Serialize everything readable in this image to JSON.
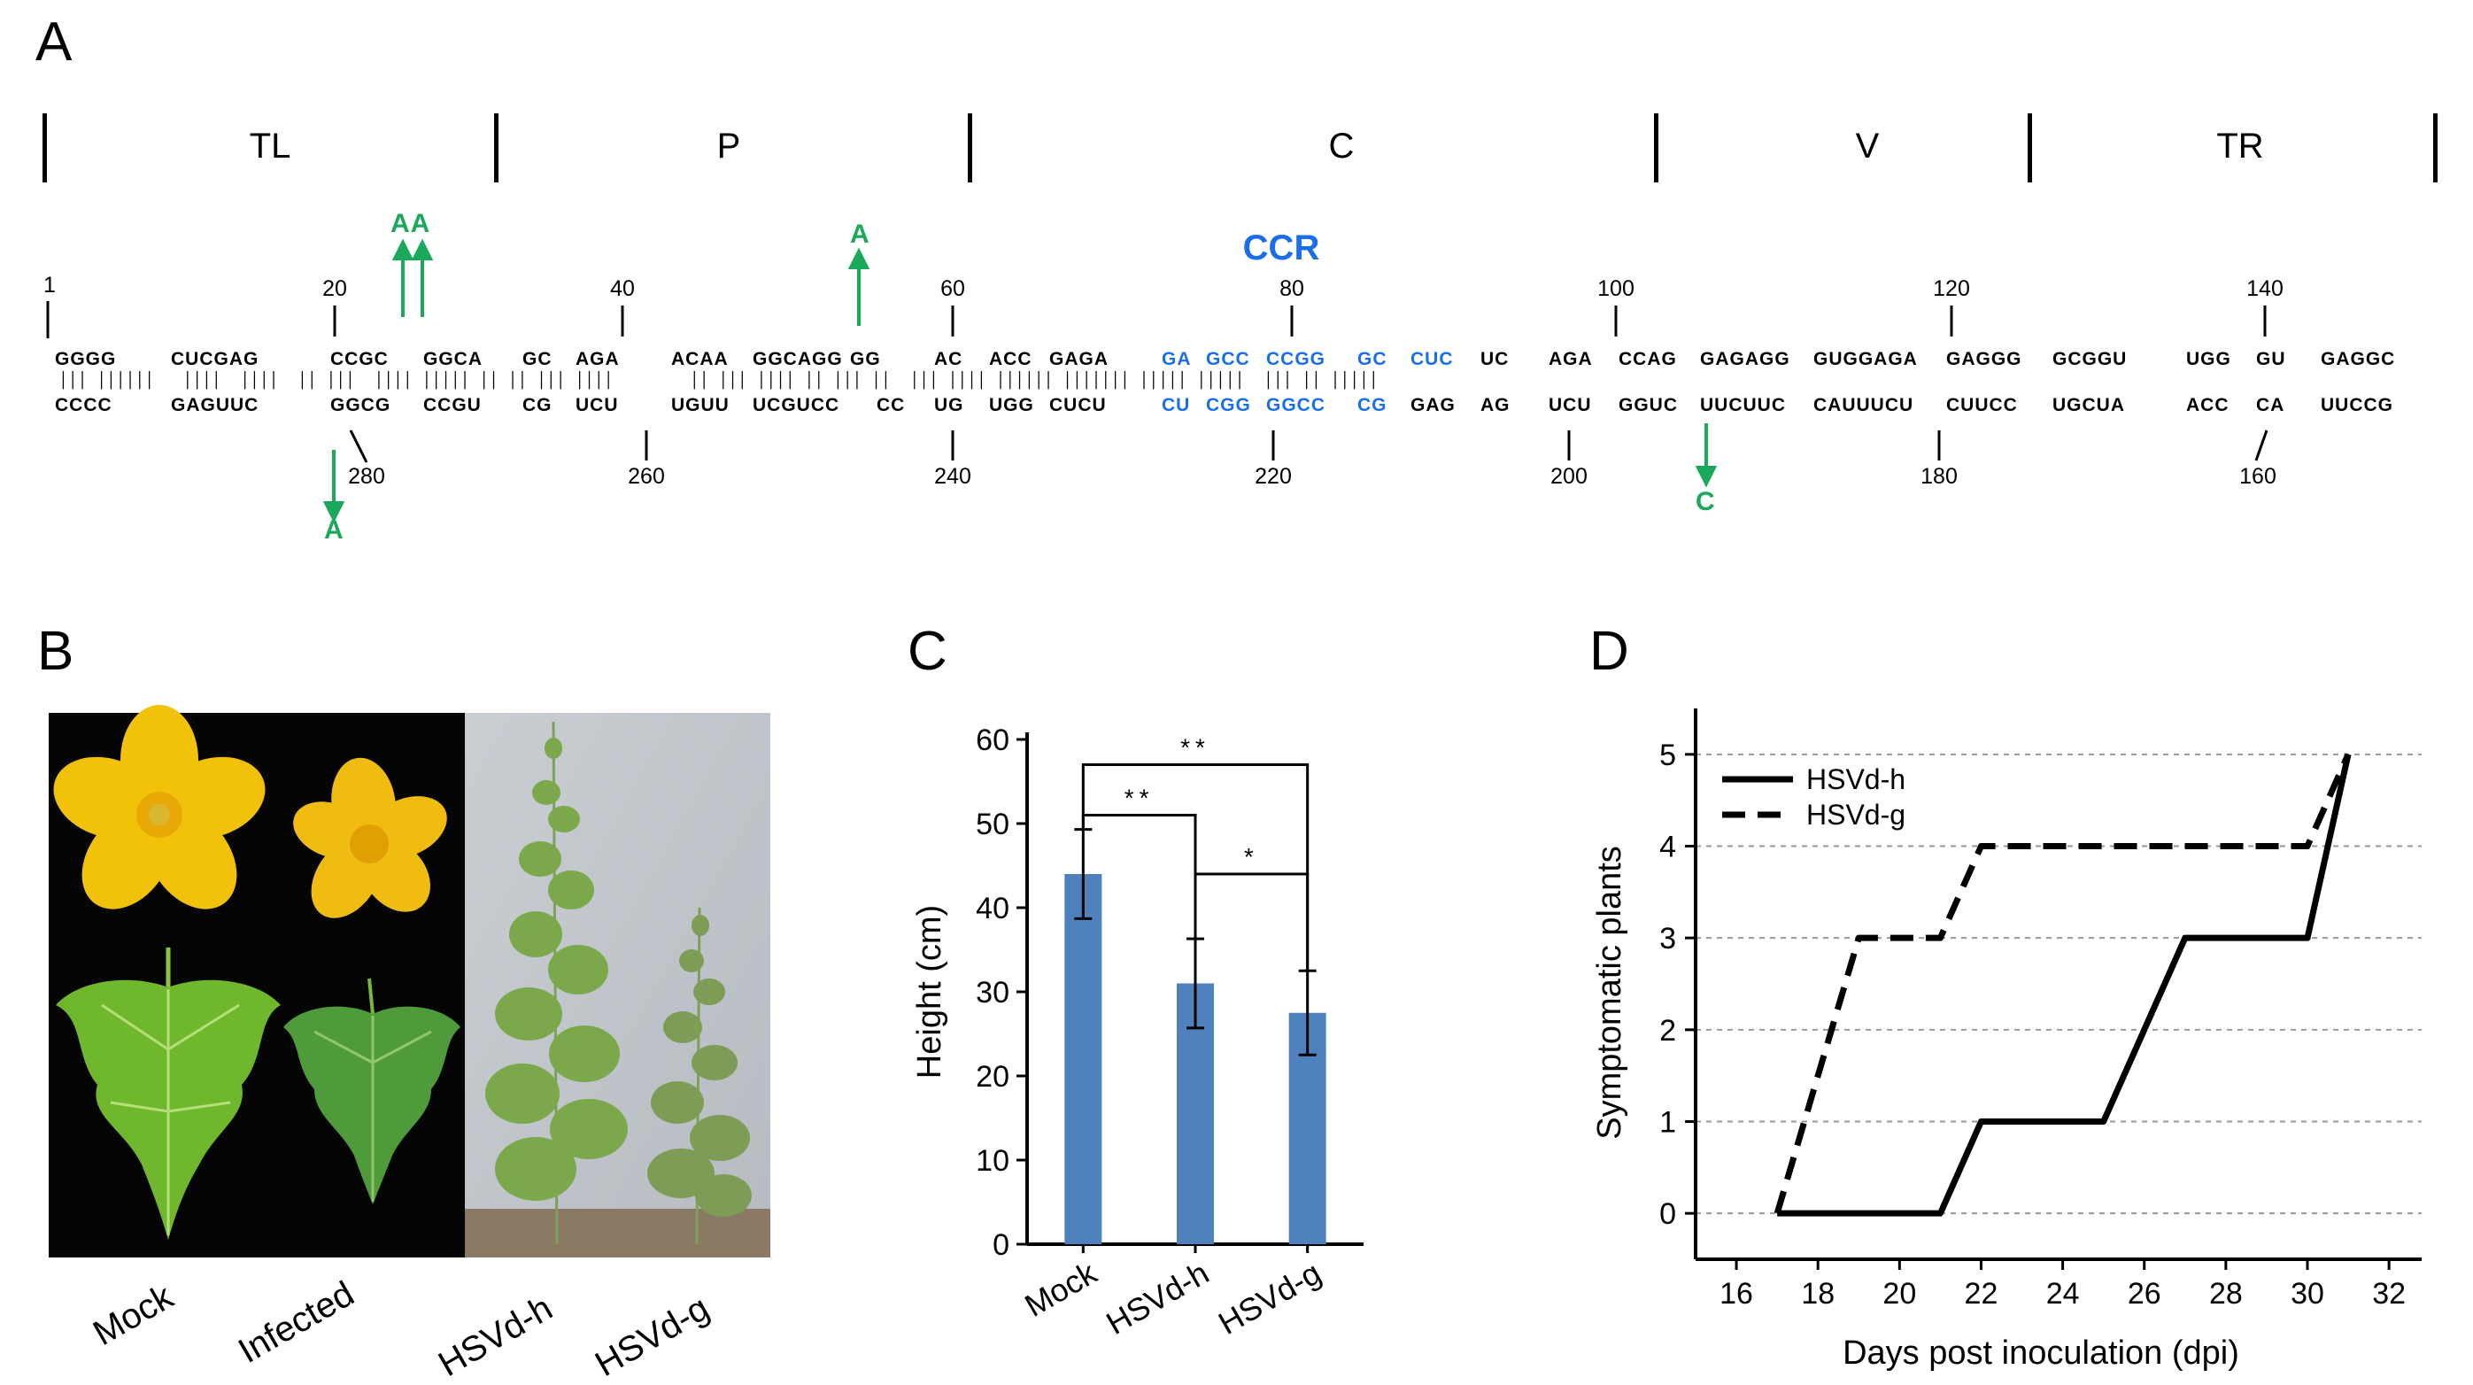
{
  "panels": {
    "a": "A",
    "b": "B",
    "c": "C",
    "d": "D"
  },
  "structure": {
    "regions": [
      "TL",
      "P",
      "C",
      "V",
      "TR"
    ],
    "ccr_label": "CCR",
    "positions_top": [
      "1",
      "20",
      "40",
      "60",
      "80",
      "100",
      "120",
      "140"
    ],
    "positions_bottom": [
      "280",
      "260",
      "240",
      "220",
      "200",
      "180",
      "160"
    ],
    "top_strand": [
      "GGGG",
      "CUCGAG",
      "CCGC",
      "GGCA",
      "GC",
      "AGA",
      "ACAA",
      "GGCAGG",
      "GG",
      "AC",
      "ACC",
      "GAGA",
      "GA",
      "GCC",
      "CCGG",
      "GC",
      "CUC",
      "UC",
      "AGA",
      "CCAG",
      "GAGAGG",
      "GUGGAGA",
      "GAGGG",
      "GCGGU",
      "UGG",
      "GU",
      "GAGGC"
    ],
    "bottom_strand": [
      "CCCC",
      "GAGUUC",
      "GGCG",
      "CCGU",
      "CG",
      "UCU",
      "UGUU",
      "UCGUCC",
      "CC",
      "UG",
      "UGG",
      "CUCU",
      "CU",
      "CGG",
      "GGCC",
      "CG",
      "GAG",
      "AG",
      "UCU",
      "GGUC",
      "UUCUUC",
      "CAUUUCU",
      "CUUCC",
      "UGCUA",
      "ACC",
      "CA",
      "UUCCG"
    ],
    "mutations": [
      "AA",
      "A",
      "A",
      "C"
    ]
  },
  "photo_labels": [
    "Mock",
    "Infected",
    "HSVd-h",
    "HSVd-g"
  ],
  "chart_data": [
    {
      "type": "bar",
      "categories": [
        "Mock",
        "HSVd-h",
        "HSVd-g"
      ],
      "values": [
        44,
        31,
        27.5
      ],
      "errors": [
        5.3,
        5.3,
        5.0
      ],
      "ylabel": "Height (cm)",
      "xlabel": "",
      "ylim": [
        0,
        60
      ],
      "yticks": [
        "0",
        "10",
        "20",
        "30",
        "40",
        "50",
        "60"
      ],
      "bar_color": "#4f81bd",
      "significance": [
        {
          "from": "Mock",
          "to": "HSVd-g",
          "label": "**"
        },
        {
          "from": "Mock",
          "to": "HSVd-h",
          "label": "**"
        },
        {
          "from": "HSVd-h",
          "to": "HSVd-g",
          "label": "*"
        }
      ]
    },
    {
      "type": "line",
      "xlabel": "Days post inoculation (dpi)",
      "ylabel": "Symptomatic plants",
      "xlim": [
        15,
        32.8
      ],
      "ylim": [
        -0.5,
        5.5
      ],
      "xticks": [
        "16",
        "18",
        "20",
        "22",
        "24",
        "26",
        "28",
        "30",
        "32"
      ],
      "yticks": [
        "0",
        "1",
        "2",
        "3",
        "4",
        "5"
      ],
      "grid": "horizontal dotted",
      "legend_position": "top-left",
      "series": [
        {
          "name": "HSVd-h",
          "style": "solid",
          "x": [
            17,
            21,
            22,
            25,
            27,
            30,
            31
          ],
          "y": [
            0,
            0,
            1,
            1,
            3,
            3,
            5
          ]
        },
        {
          "name": "HSVd-g",
          "style": "dashed",
          "x": [
            17,
            19,
            20,
            21,
            22,
            30,
            31
          ],
          "y": [
            0,
            3,
            3,
            3,
            4,
            4,
            5
          ]
        }
      ]
    }
  ]
}
